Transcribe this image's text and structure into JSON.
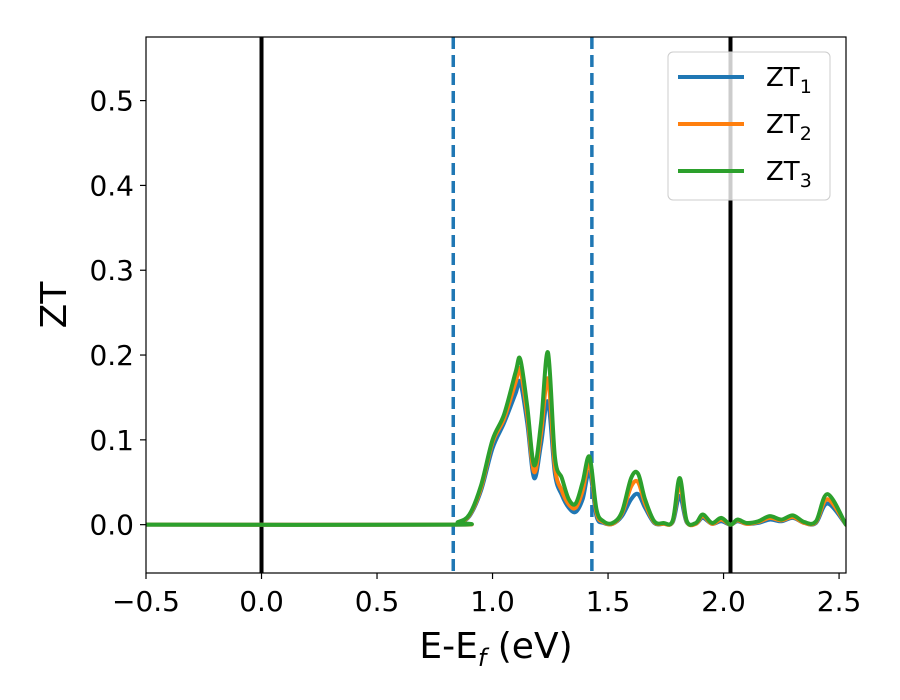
{
  "chart_data": {
    "type": "line",
    "xlabel": "E-E",
    "xlabel_sub": "f",
    "xlabel_unit": " (eV)",
    "ylabel": "ZT",
    "xlim": [
      -0.5,
      2.53
    ],
    "ylim": [
      -0.057,
      0.575
    ],
    "xticks": [
      -0.5,
      0.0,
      0.5,
      1.0,
      1.5,
      2.0,
      2.5
    ],
    "xtick_labels": [
      "−0.5",
      "0.0",
      "0.5",
      "1.0",
      "1.5",
      "2.0",
      "2.5"
    ],
    "yticks": [
      0.0,
      0.1,
      0.2,
      0.3,
      0.4,
      0.5
    ],
    "ytick_labels": [
      "0.0",
      "0.1",
      "0.2",
      "0.3",
      "0.4",
      "0.5"
    ],
    "grid": false,
    "legend_position": "top-right",
    "vlines": [
      {
        "x": 0.0,
        "style": "solid",
        "color": "#000000"
      },
      {
        "x": 0.83,
        "style": "dashed",
        "color": "#1f77b4"
      },
      {
        "x": 1.43,
        "style": "dashed",
        "color": "#1f77b4"
      },
      {
        "x": 2.03,
        "style": "solid",
        "color": "#000000"
      }
    ],
    "series": [
      {
        "name": "ZT",
        "sub": "1",
        "color": "#1f77b4",
        "x": [
          -0.5,
          0.8,
          0.85,
          0.9,
          0.95,
          1.0,
          1.05,
          1.1,
          1.12,
          1.15,
          1.18,
          1.21,
          1.24,
          1.27,
          1.3,
          1.33,
          1.36,
          1.39,
          1.42,
          1.45,
          1.48,
          1.52,
          1.56,
          1.6,
          1.63,
          1.66,
          1.7,
          1.74,
          1.78,
          1.81,
          1.84,
          1.88,
          1.91,
          1.95,
          1.99,
          2.03,
          2.06,
          2.1,
          2.15,
          2.2,
          2.25,
          2.3,
          2.35,
          2.4,
          2.45,
          2.53
        ],
        "y": [
          0.0,
          0.0,
          0.002,
          0.01,
          0.04,
          0.09,
          0.12,
          0.155,
          0.168,
          0.12,
          0.055,
          0.095,
          0.145,
          0.06,
          0.035,
          0.02,
          0.015,
          0.03,
          0.062,
          0.01,
          0.002,
          0.001,
          0.01,
          0.03,
          0.036,
          0.02,
          0.002,
          0.001,
          0.003,
          0.034,
          0.003,
          0.001,
          0.008,
          0.001,
          0.004,
          0.0,
          0.004,
          0.001,
          0.002,
          0.006,
          0.004,
          0.008,
          0.002,
          0.002,
          0.025,
          0.0
        ]
      },
      {
        "name": "ZT",
        "sub": "2",
        "color": "#ff7f0e",
        "x": [
          -0.5,
          0.8,
          0.85,
          0.9,
          0.95,
          1.0,
          1.05,
          1.1,
          1.12,
          1.15,
          1.18,
          1.21,
          1.24,
          1.27,
          1.3,
          1.33,
          1.36,
          1.39,
          1.42,
          1.45,
          1.48,
          1.52,
          1.56,
          1.6,
          1.63,
          1.66,
          1.7,
          1.74,
          1.78,
          1.81,
          1.84,
          1.88,
          1.91,
          1.95,
          1.99,
          2.03,
          2.06,
          2.1,
          2.15,
          2.2,
          2.25,
          2.3,
          2.35,
          2.4,
          2.45,
          2.53
        ],
        "y": [
          0.0,
          0.0,
          0.002,
          0.011,
          0.043,
          0.097,
          0.125,
          0.168,
          0.183,
          0.13,
          0.062,
          0.108,
          0.172,
          0.068,
          0.04,
          0.024,
          0.02,
          0.04,
          0.072,
          0.014,
          0.003,
          0.001,
          0.013,
          0.045,
          0.05,
          0.025,
          0.003,
          0.001,
          0.004,
          0.047,
          0.004,
          0.001,
          0.01,
          0.001,
          0.006,
          0.0,
          0.005,
          0.001,
          0.003,
          0.008,
          0.005,
          0.009,
          0.002,
          0.003,
          0.03,
          0.0
        ]
      },
      {
        "name": "ZT",
        "sub": "3",
        "color": "#2ca02c",
        "x": [
          -0.5,
          0.8,
          0.85,
          0.9,
          0.95,
          1.0,
          1.05,
          1.1,
          1.12,
          1.15,
          1.18,
          1.21,
          1.24,
          1.27,
          1.3,
          1.33,
          1.36,
          1.39,
          1.42,
          1.45,
          1.48,
          1.52,
          1.56,
          1.6,
          1.63,
          1.66,
          1.7,
          1.74,
          1.78,
          1.81,
          1.84,
          1.88,
          1.91,
          1.95,
          1.99,
          2.03,
          2.06,
          2.1,
          2.15,
          2.2,
          2.25,
          2.3,
          2.35,
          2.4,
          2.45,
          2.53
        ],
        "y": [
          0.0,
          0.0,
          0.003,
          0.012,
          0.046,
          0.1,
          0.13,
          0.18,
          0.195,
          0.14,
          0.07,
          0.12,
          0.203,
          0.08,
          0.055,
          0.03,
          0.025,
          0.05,
          0.08,
          0.018,
          0.004,
          0.002,
          0.015,
          0.055,
          0.06,
          0.03,
          0.004,
          0.002,
          0.005,
          0.055,
          0.005,
          0.002,
          0.012,
          0.002,
          0.008,
          0.0,
          0.006,
          0.002,
          0.004,
          0.01,
          0.006,
          0.011,
          0.003,
          0.004,
          0.036,
          0.0
        ]
      }
    ]
  }
}
